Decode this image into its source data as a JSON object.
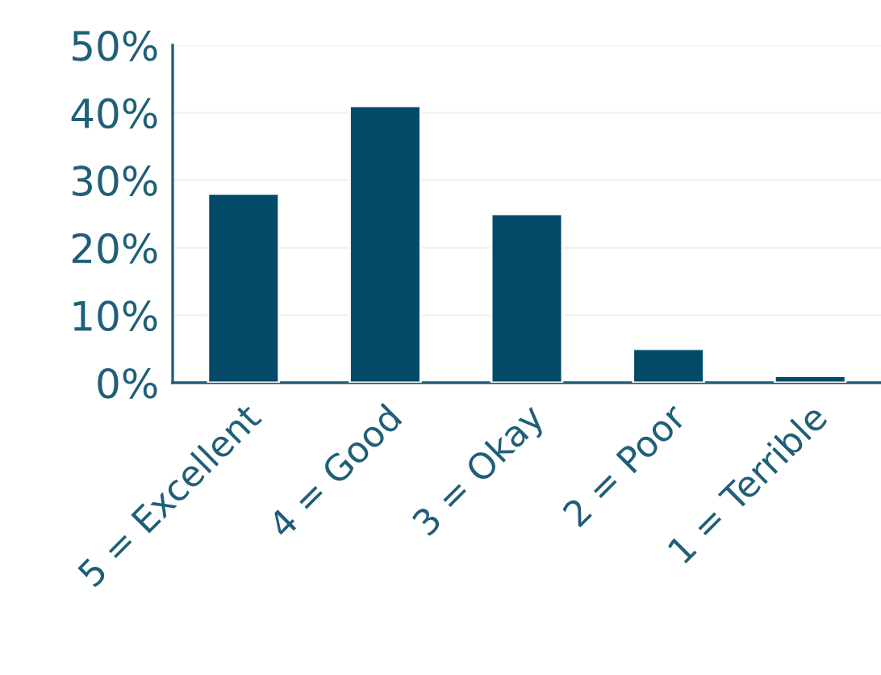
{
  "chart_data": {
    "type": "bar",
    "categories": [
      "5 = Excellent",
      "4 = Good",
      "3 = Okay",
      "2 = Poor",
      "1 = Terrible"
    ],
    "values": [
      28,
      41,
      25,
      5,
      1
    ],
    "color": "#034a69",
    "ylim": [
      0,
      50
    ],
    "yticks": [
      {
        "value": 0,
        "label": "0%"
      },
      {
        "value": 10,
        "label": "10%"
      },
      {
        "value": 20,
        "label": "20%"
      },
      {
        "value": 30,
        "label": "30%"
      },
      {
        "value": 40,
        "label": "40%"
      },
      {
        "value": 50,
        "label": "50%"
      }
    ],
    "grid": "y"
  }
}
